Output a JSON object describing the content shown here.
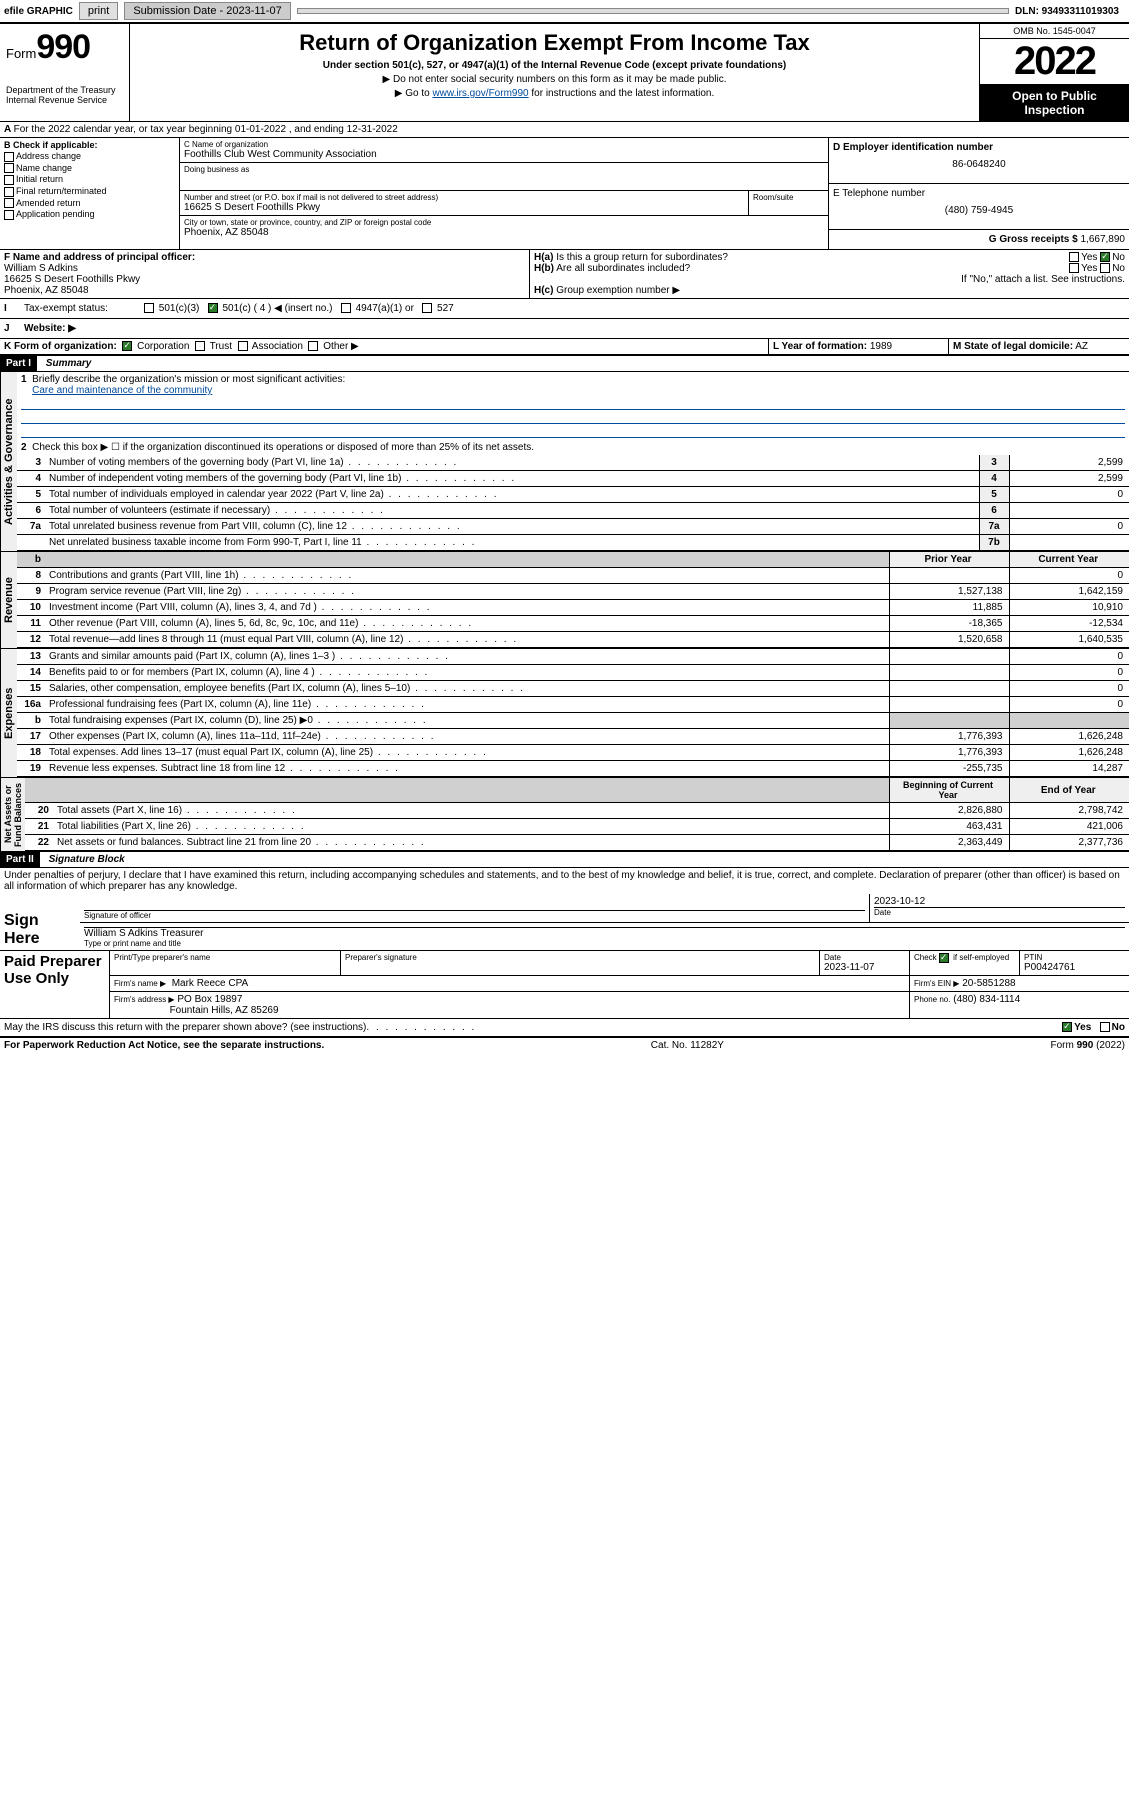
{
  "topbar": {
    "efile_label": "efile GRAPHIC",
    "print_btn": "print",
    "sub_date_label": "Submission Date - 2023-11-07",
    "dln": "DLN: 93493311019303"
  },
  "header": {
    "form_word": "Form",
    "form_num": "990",
    "dept": "Department of the Treasury\nInternal Revenue Service",
    "title": "Return of Organization Exempt From Income Tax",
    "subtitle": "Under section 501(c), 527, or 4947(a)(1) of the Internal Revenue Code (except private foundations)",
    "note1": "▶ Do not enter social security numbers on this form as it may be made public.",
    "note2_pre": "▶ Go to ",
    "note2_link": "www.irs.gov/Form990",
    "note2_post": " for instructions and the latest information.",
    "omb": "OMB No. 1545-0047",
    "year": "2022",
    "open": "Open to Public Inspection"
  },
  "section_a": {
    "text": "For the 2022 calendar year, or tax year beginning 01-01-2022    , and ending 12-31-2022"
  },
  "b": {
    "label": "B Check if applicable:",
    "opts": [
      "Address change",
      "Name change",
      "Initial return",
      "Final return/terminated",
      "Amended return",
      "Application pending"
    ]
  },
  "c": {
    "name_label": "C Name of organization",
    "name": "Foothills Club West Community Association",
    "dba_label": "Doing business as",
    "addr_label": "Number and street (or P.O. box if mail is not delivered to street address)",
    "room_label": "Room/suite",
    "addr": "16625 S Desert Foothills Pkwy",
    "city_label": "City or town, state or province, country, and ZIP or foreign postal code",
    "city": "Phoenix, AZ  85048"
  },
  "d": {
    "label": "D Employer identification number",
    "val": "86-0648240"
  },
  "e": {
    "label": "E Telephone number",
    "val": "(480) 759-4945"
  },
  "g": {
    "label": "G Gross receipts $",
    "val": "1,667,890"
  },
  "f": {
    "label": "F  Name and address of principal officer:",
    "name": "William S Adkins",
    "addr1": "16625 S Desert Foothills Pkwy",
    "addr2": "Phoenix, AZ  85048"
  },
  "h": {
    "a": "H(a)  Is this a group return for subordinates?",
    "a_yes": "Yes",
    "a_no": "No",
    "b": "H(b)  Are all subordinates included?",
    "b_yes": "Yes",
    "b_no": "No",
    "b_note": "If \"No,\" attach a list. See instructions.",
    "c": "H(c)  Group exemption number ▶"
  },
  "i": {
    "label": "Tax-exempt status:",
    "opts": [
      "501(c)(3)",
      "501(c) ( 4 ) ◀ (insert no.)",
      "4947(a)(1) or",
      "527"
    ]
  },
  "j": {
    "label": "Website: ▶"
  },
  "k": {
    "label": "K Form of organization:",
    "opts": [
      "Corporation",
      "Trust",
      "Association",
      "Other ▶"
    ]
  },
  "l": {
    "label": "L Year of formation:",
    "val": "1989"
  },
  "m": {
    "label": "M State of legal domicile:",
    "val": "AZ"
  },
  "part1": {
    "hdr": "Part I",
    "title": "Summary",
    "q1": "Briefly describe the organization's mission or most significant activities:",
    "q1_ans": "Care and maintenance of the community",
    "q2": "Check this box ▶ ☐  if the organization discontinued its operations or disposed of more than 25% of its net assets.",
    "rows_gov": [
      {
        "n": "3",
        "d": "Number of voting members of the governing body (Part VI, line 1a)",
        "b": "3",
        "v": "2,599"
      },
      {
        "n": "4",
        "d": "Number of independent voting members of the governing body (Part VI, line 1b)",
        "b": "4",
        "v": "2,599"
      },
      {
        "n": "5",
        "d": "Total number of individuals employed in calendar year 2022 (Part V, line 2a)",
        "b": "5",
        "v": "0"
      },
      {
        "n": "6",
        "d": "Total number of volunteers (estimate if necessary)",
        "b": "6",
        "v": ""
      },
      {
        "n": "7a",
        "d": "Total unrelated business revenue from Part VIII, column (C), line 12",
        "b": "7a",
        "v": "0"
      },
      {
        "n": "",
        "d": "Net unrelated business taxable income from Form 990-T, Part I, line 11",
        "b": "7b",
        "v": ""
      }
    ],
    "col_py": "Prior Year",
    "col_cy": "Current Year",
    "rows_rev": [
      {
        "n": "8",
        "d": "Contributions and grants (Part VIII, line 1h)",
        "py": "",
        "cy": "0"
      },
      {
        "n": "9",
        "d": "Program service revenue (Part VIII, line 2g)",
        "py": "1,527,138",
        "cy": "1,642,159"
      },
      {
        "n": "10",
        "d": "Investment income (Part VIII, column (A), lines 3, 4, and 7d )",
        "py": "11,885",
        "cy": "10,910"
      },
      {
        "n": "11",
        "d": "Other revenue (Part VIII, column (A), lines 5, 6d, 8c, 9c, 10c, and 11e)",
        "py": "-18,365",
        "cy": "-12,534"
      },
      {
        "n": "12",
        "d": "Total revenue—add lines 8 through 11 (must equal Part VIII, column (A), line 12)",
        "py": "1,520,658",
        "cy": "1,640,535"
      }
    ],
    "rows_exp": [
      {
        "n": "13",
        "d": "Grants and similar amounts paid (Part IX, column (A), lines 1–3 )",
        "py": "",
        "cy": "0"
      },
      {
        "n": "14",
        "d": "Benefits paid to or for members (Part IX, column (A), line 4 )",
        "py": "",
        "cy": "0"
      },
      {
        "n": "15",
        "d": "Salaries, other compensation, employee benefits (Part IX, column (A), lines 5–10)",
        "py": "",
        "cy": "0"
      },
      {
        "n": "16a",
        "d": "Professional fundraising fees (Part IX, column (A), line 11e)",
        "py": "",
        "cy": "0"
      },
      {
        "n": "b",
        "d": "Total fundraising expenses (Part IX, column (D), line 25) ▶0",
        "py": "shade",
        "cy": "shade"
      },
      {
        "n": "17",
        "d": "Other expenses (Part IX, column (A), lines 11a–11d, 11f–24e)",
        "py": "1,776,393",
        "cy": "1,626,248"
      },
      {
        "n": "18",
        "d": "Total expenses. Add lines 13–17 (must equal Part IX, column (A), line 25)",
        "py": "1,776,393",
        "cy": "1,626,248"
      },
      {
        "n": "19",
        "d": "Revenue less expenses. Subtract line 18 from line 12",
        "py": "-255,735",
        "cy": "14,287"
      }
    ],
    "col_boy": "Beginning of Current Year",
    "col_eoy": "End of Year",
    "rows_net": [
      {
        "n": "20",
        "d": "Total assets (Part X, line 16)",
        "py": "2,826,880",
        "cy": "2,798,742"
      },
      {
        "n": "21",
        "d": "Total liabilities (Part X, line 26)",
        "py": "463,431",
        "cy": "421,006"
      },
      {
        "n": "22",
        "d": "Net assets or fund balances. Subtract line 21 from line 20",
        "py": "2,363,449",
        "cy": "2,377,736"
      }
    ]
  },
  "part2": {
    "hdr": "Part II",
    "title": "Signature Block",
    "decl": "Under penalties of perjury, I declare that I have examined this return, including accompanying schedules and statements, and to the best of my knowledge and belief, it is true, correct, and complete. Declaration of preparer (other than officer) is based on all information of which preparer has any knowledge.",
    "sign_here": "Sign Here",
    "sig_officer": "Signature of officer",
    "sig_date": "2023-10-12",
    "date_label": "Date",
    "officer_name": "William S Adkins  Treasurer",
    "officer_type": "Type or print name and title",
    "paid": "Paid Preparer Use Only",
    "prep_name_label": "Print/Type preparer's name",
    "prep_sig_label": "Preparer's signature",
    "prep_date_label": "Date",
    "prep_date": "2023-11-07",
    "self_emp": "Check ☑ if self-employed",
    "ptin_label": "PTIN",
    "ptin": "P00424761",
    "firm_name_label": "Firm's name    ▶",
    "firm_name": "Mark Reece CPA",
    "firm_ein_label": "Firm's EIN ▶",
    "firm_ein": "20-5851288",
    "firm_addr_label": "Firm's address ▶",
    "firm_addr1": "PO Box 19897",
    "firm_addr2": "Fountain Hills, AZ  85269",
    "phone_label": "Phone no.",
    "phone": "(480) 834-1114",
    "discuss": "May the IRS discuss this return with the preparer shown above? (see instructions)",
    "discuss_yes": "Yes",
    "discuss_no": "No"
  },
  "footer": {
    "pra": "For Paperwork Reduction Act Notice, see the separate instructions.",
    "cat": "Cat. No. 11282Y",
    "form": "Form 990 (2022)"
  }
}
